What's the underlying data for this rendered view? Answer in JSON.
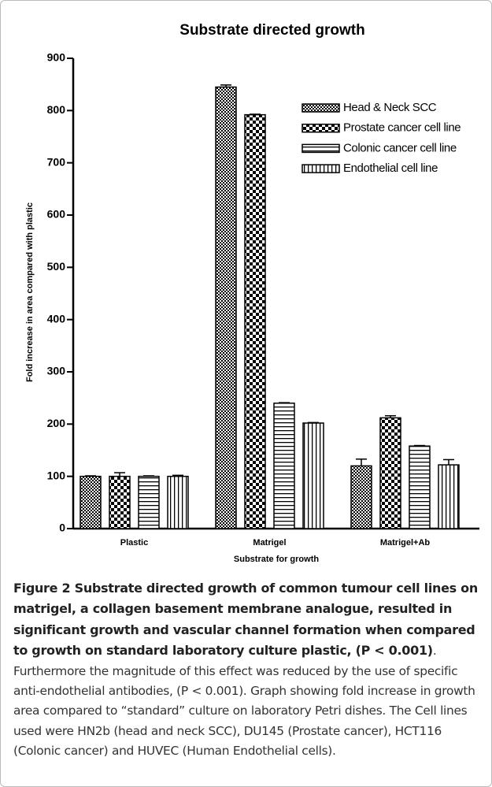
{
  "chart_data": {
    "type": "bar",
    "title": "Substrate directed growth",
    "x_label": "Substrate for growth",
    "y_label": "Fold increase in area compared with plastic",
    "categories": [
      "Plastic",
      "Matrigel",
      "Matrigel+Ab"
    ],
    "series": [
      {
        "name": "Head & Neck SCC",
        "color": "#000000",
        "pattern": "fine-checker",
        "values": [
          100,
          845,
          120
        ],
        "errors": [
          1,
          4,
          13
        ]
      },
      {
        "name": "Prostate cancer cell line",
        "color": "#000000",
        "pattern": "coarse-checker",
        "values": [
          100,
          792,
          212
        ],
        "errors": [
          7,
          1,
          4
        ]
      },
      {
        "name": "Colonic cancer cell line",
        "color": "#000000",
        "pattern": "horizontal-lines",
        "values": [
          100,
          240,
          158
        ],
        "errors": [
          1,
          1,
          1
        ]
      },
      {
        "name": "Endothelial cell line",
        "color": "#000000",
        "pattern": "vertical-lines",
        "values": [
          100,
          202,
          122
        ],
        "errors": [
          2,
          1,
          10
        ]
      }
    ],
    "ylim": [
      0,
      900
    ],
    "yticks": [
      0,
      100,
      200,
      300,
      400,
      500,
      600,
      700,
      800,
      900
    ],
    "legend": "upper right",
    "grid": false
  },
  "caption": {
    "label": "Figure 2",
    "title": "Substrate directed growth of common tumour cell lines on matrigel, a collagen basement membrane analogue, resulted in significant growth and vascular channel formation when compared to growth on standard laboratory culture plastic, (P < 0.001)",
    "text": ". Furthermore the magnitude of this effect was reduced by the use of specific anti-endothelial antibodies, (P < 0.001). Graph showing fold increase in growth area compared to “standard” culture on laboratory Petri dishes. The Cell lines used were HN2b (head and neck SCC), DU145 (Prostate cancer), HCT116 (Colonic cancer) and HUVEC (Human Endothelial cells)."
  }
}
